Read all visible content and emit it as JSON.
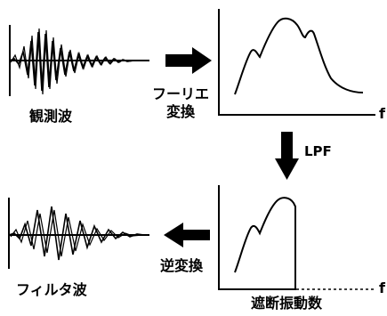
{
  "labels": {
    "observed_wave": "観測波",
    "fourier_line1": "フーリエ",
    "fourier_line2": "変換",
    "freq_axis_top": "f",
    "lpf": "LPF",
    "inverse_transform": "逆変換",
    "filtered_wave": "フィルタ波",
    "cutoff_vibration": "遮断振動数",
    "freq_axis_bottom": "f"
  }
}
